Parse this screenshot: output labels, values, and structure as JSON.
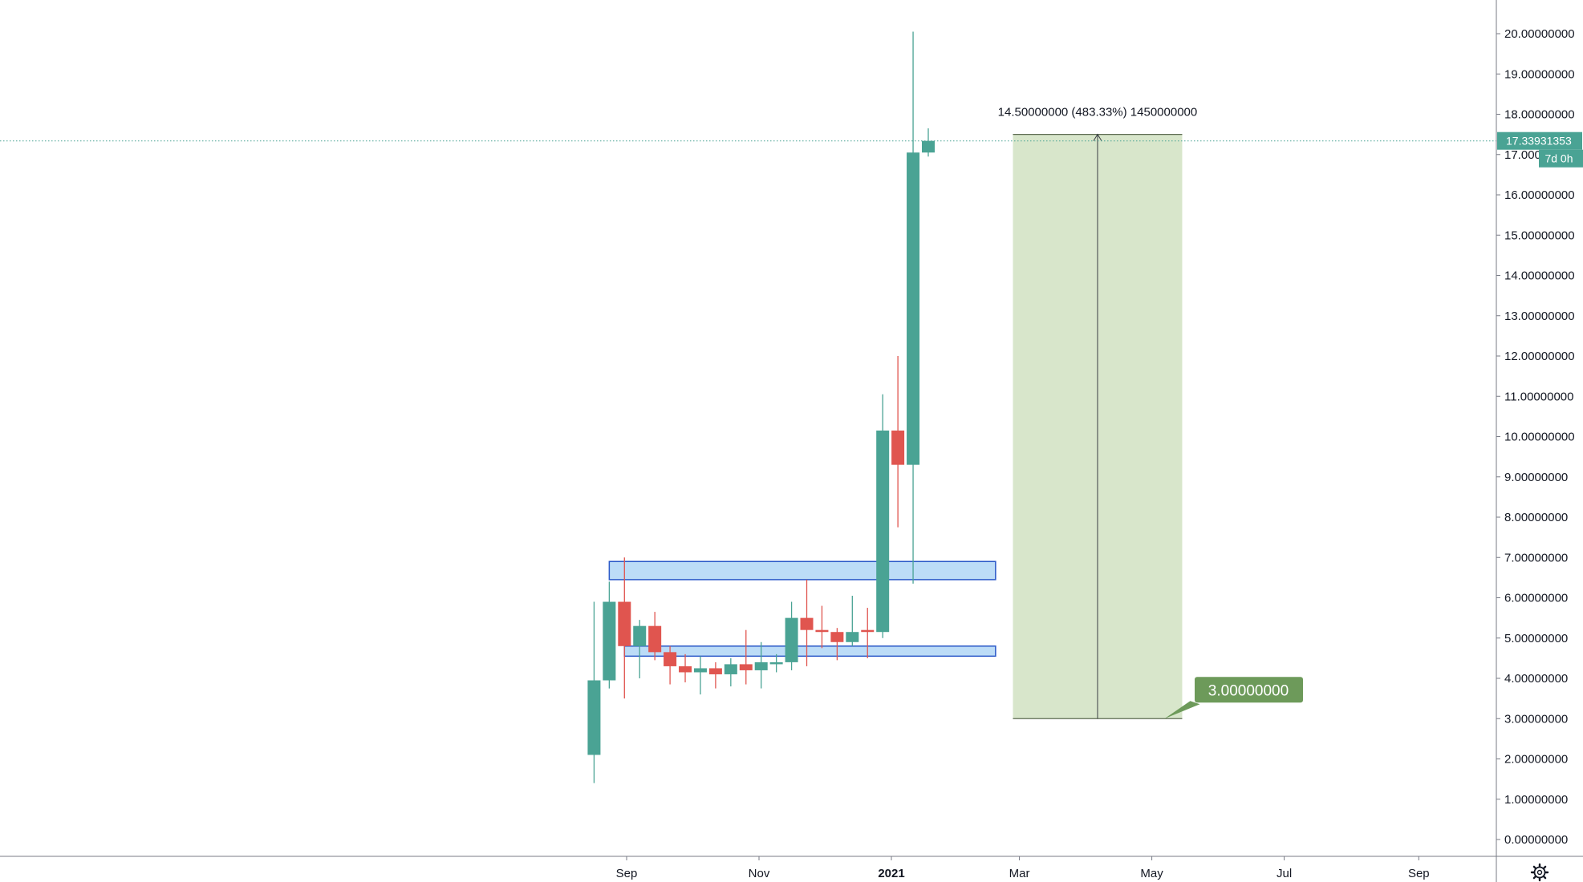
{
  "chart_data": {
    "type": "candlestick",
    "interval_label": "7d 0h",
    "y_axis": {
      "min": 0,
      "max": 20,
      "step": 1,
      "tick_labels": [
        "0.00000000",
        "1.00000000",
        "2.00000000",
        "3.00000000",
        "4.00000000",
        "5.00000000",
        "6.00000000",
        "7.00000000",
        "8.00000000",
        "9.00000000",
        "10.00000000",
        "11.00000000",
        "12.00000000",
        "13.00000000",
        "14.00000000",
        "15.00000000",
        "16.00000000",
        "17.00000000",
        "18.00000000",
        "19.00000000",
        "20.00000000"
      ],
      "position": "right"
    },
    "x_axis": {
      "tick_labels": [
        {
          "label": "Sep",
          "date": "2020-09-01",
          "bold": false
        },
        {
          "label": "Nov",
          "date": "2020-11-01",
          "bold": false
        },
        {
          "label": "2021",
          "date": "2021-01-01",
          "bold": true
        },
        {
          "label": "Mar",
          "date": "2021-03-01",
          "bold": false
        },
        {
          "label": "May",
          "date": "2021-05-01",
          "bold": false
        },
        {
          "label": "Jul",
          "date": "2021-07-01",
          "bold": false
        },
        {
          "label": "Sep",
          "date": "2021-09-01",
          "bold": false
        }
      ]
    },
    "grid": false,
    "colors": {
      "up": "#4aa394",
      "down": "#e0554f",
      "box_fill": "#bcdcf7",
      "box_stroke": "#2a58c8",
      "measure_fill": "#d8e6cb",
      "target_tag": "#6d9a5a",
      "price_tag": "#4aa394",
      "axis_line": "#787b86"
    },
    "candles": [
      {
        "date": "2020-08-17",
        "open": 2.1,
        "high": 5.9,
        "low": 1.4,
        "close": 3.95
      },
      {
        "date": "2020-08-24",
        "open": 3.95,
        "high": 6.4,
        "low": 3.75,
        "close": 5.9
      },
      {
        "date": "2020-08-31",
        "open": 5.9,
        "high": 7.0,
        "low": 3.5,
        "close": 4.8
      },
      {
        "date": "2020-09-07",
        "open": 4.8,
        "high": 5.45,
        "low": 4.0,
        "close": 5.3
      },
      {
        "date": "2020-09-14",
        "open": 5.3,
        "high": 5.65,
        "low": 4.45,
        "close": 4.65
      },
      {
        "date": "2020-09-21",
        "open": 4.65,
        "high": 4.8,
        "low": 3.85,
        "close": 4.3
      },
      {
        "date": "2020-09-28",
        "open": 4.3,
        "high": 4.6,
        "low": 3.9,
        "close": 4.15
      },
      {
        "date": "2020-10-05",
        "open": 4.15,
        "high": 4.55,
        "low": 3.6,
        "close": 4.25
      },
      {
        "date": "2020-10-12",
        "open": 4.25,
        "high": 4.4,
        "low": 3.75,
        "close": 4.1
      },
      {
        "date": "2020-10-19",
        "open": 4.1,
        "high": 4.5,
        "low": 3.8,
        "close": 4.35
      },
      {
        "date": "2020-10-26",
        "open": 4.35,
        "high": 5.2,
        "low": 3.85,
        "close": 4.2
      },
      {
        "date": "2020-11-02",
        "open": 4.2,
        "high": 4.9,
        "low": 3.75,
        "close": 4.4
      },
      {
        "date": "2020-11-09",
        "open": 4.35,
        "high": 4.6,
        "low": 4.15,
        "close": 4.4
      },
      {
        "date": "2020-11-16",
        "open": 4.4,
        "high": 5.9,
        "low": 4.2,
        "close": 5.5
      },
      {
        "date": "2020-11-23",
        "open": 5.5,
        "high": 6.45,
        "low": 4.3,
        "close": 5.2
      },
      {
        "date": "2020-11-30",
        "open": 5.2,
        "high": 5.8,
        "low": 4.75,
        "close": 5.15
      },
      {
        "date": "2020-12-07",
        "open": 5.15,
        "high": 5.25,
        "low": 4.45,
        "close": 4.9
      },
      {
        "date": "2020-12-14",
        "open": 4.9,
        "high": 6.05,
        "low": 4.8,
        "close": 5.15
      },
      {
        "date": "2020-12-21",
        "open": 5.2,
        "high": 5.75,
        "low": 4.5,
        "close": 5.15
      },
      {
        "date": "2020-12-28",
        "open": 5.15,
        "high": 11.05,
        "low": 5.0,
        "close": 10.15
      },
      {
        "date": "2021-01-04",
        "open": 10.15,
        "high": 12.0,
        "low": 7.75,
        "close": 9.3
      },
      {
        "date": "2021-01-11",
        "open": 9.3,
        "high": 20.05,
        "low": 6.35,
        "close": 17.05
      },
      {
        "date": "2021-01-18",
        "open": 17.05,
        "high": 17.65,
        "low": 16.95,
        "close": 17.34
      }
    ],
    "last_price": {
      "value": 17.33931353,
      "label": "17.33931353"
    },
    "zones": [
      {
        "from_date": "2020-08-24",
        "to_date": "2021-02-18",
        "top": 6.9,
        "bottom": 6.45
      },
      {
        "from_date": "2020-08-31",
        "to_date": "2021-02-18",
        "top": 4.8,
        "bottom": 4.55
      }
    ],
    "measure": {
      "from_date": "2021-02-26",
      "to_date": "2021-05-15",
      "low": 3.0,
      "high": 17.5,
      "label": "14.50000000 (483.33%) 1450000000"
    },
    "target_tag": {
      "value": 3.0,
      "label": "3.00000000"
    },
    "settings_icon": "gear-icon"
  }
}
